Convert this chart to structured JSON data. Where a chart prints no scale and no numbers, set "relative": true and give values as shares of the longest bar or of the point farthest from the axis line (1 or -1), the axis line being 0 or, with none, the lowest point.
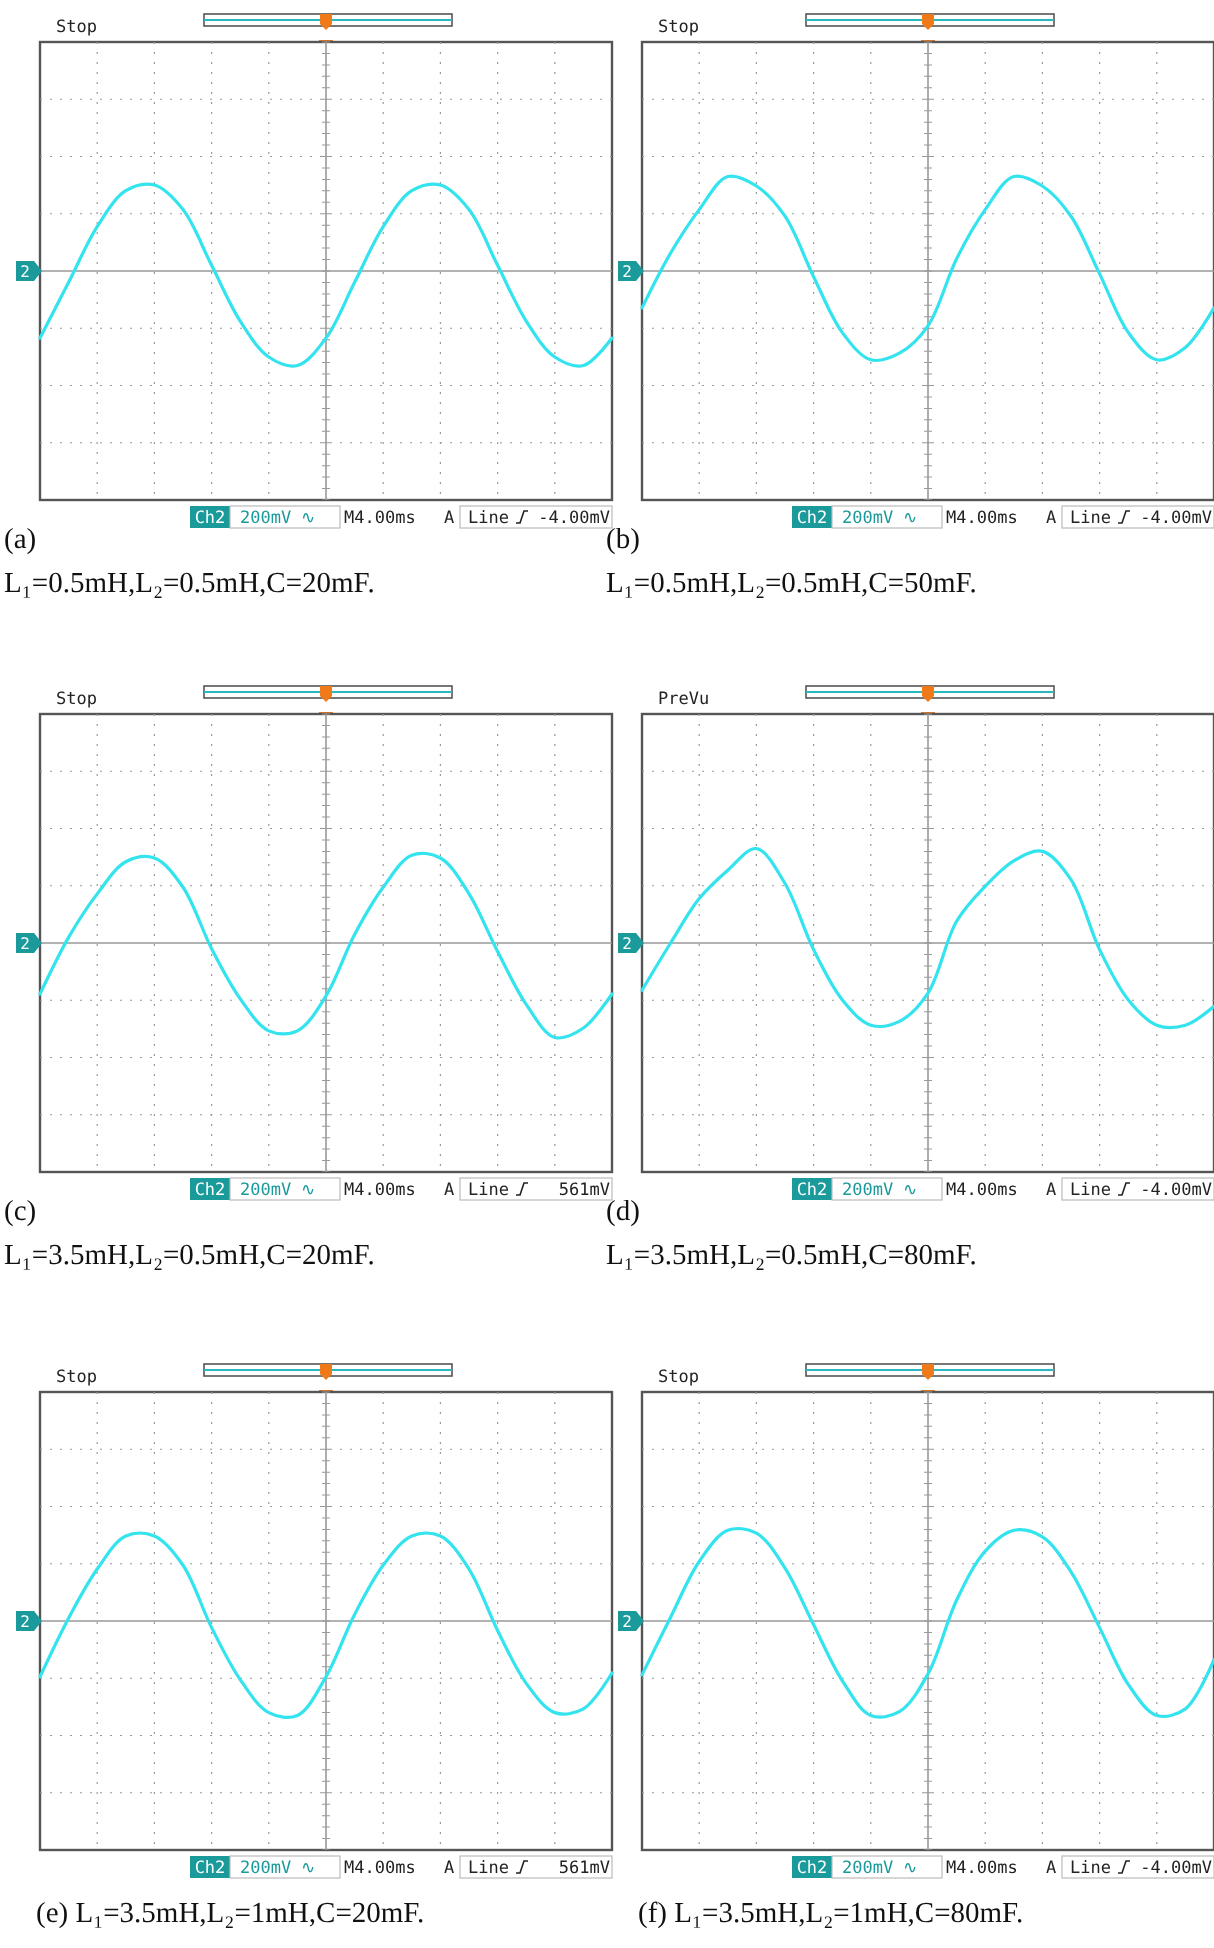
{
  "chart_data": [
    {
      "type": "line",
      "title": "(a)",
      "ref_lines": [
        {
          "axis": "y",
          "value": 0
        }
      ],
      "subtitle": "L₁=0.5mH,L₂=0.5mH,C=20mF.",
      "categories": [
        null,
        null,
        null,
        null,
        null,
        null,
        null,
        null,
        null,
        null,
        null,
        null,
        null,
        null,
        null,
        null,
        null,
        null,
        null,
        null,
        null
      ],
      "color": "#33e3ee",
      "relative": true,
      "grid": true,
      "annotations": [
        "Stop",
        "2",
        "Ch2",
        "200mV ∿",
        "M4.00ms",
        "A",
        "Line",
        "-4.00mV"
      ],
      "values": [
        -0.71,
        -0.12,
        0.47,
        0.85,
        0.91,
        0.65,
        0.06,
        -0.53,
        -0.91,
        -1,
        -0.71,
        -0.12,
        0.47,
        0.85,
        0.91,
        0.65,
        0.06,
        -0.53,
        -0.91,
        -1,
        -0.71
      ]
    },
    {
      "type": "line",
      "title": "(b)",
      "ref_lines": [
        {
          "axis": "y",
          "value": 0
        }
      ],
      "subtitle": "L₁=0.5mH,L₂=0.5mH,C=50mF.",
      "categories": [
        null,
        null,
        null,
        null,
        null,
        null,
        null,
        null,
        null,
        null,
        null,
        null,
        null,
        null,
        null,
        null,
        null,
        null,
        null,
        null,
        null
      ],
      "color": "#33e3ee",
      "relative": true,
      "grid": true,
      "annotations": [
        "Stop",
        "2",
        "Ch2",
        "200mV ∿",
        "M4.00ms",
        "A",
        "Line",
        "-4.00mV"
      ],
      "values": [
        -0.39,
        0.19,
        0.65,
        1,
        0.9,
        0.58,
        -0.06,
        -0.65,
        -0.94,
        -0.87,
        -0.58,
        0.13,
        0.65,
        1,
        0.9,
        0.58,
        -0.03,
        -0.65,
        -0.94,
        -0.81,
        -0.39
      ]
    },
    {
      "type": "line",
      "title": "(c)",
      "ref_lines": [
        {
          "axis": "y",
          "value": 0
        }
      ],
      "subtitle": "L₁=3.5mH,L₂=0.5mH,C=20mF.",
      "categories": [
        null,
        null,
        null,
        null,
        null,
        null,
        null,
        null,
        null,
        null,
        null,
        null,
        null,
        null,
        null,
        null,
        null,
        null,
        null,
        null,
        null
      ],
      "color": "#33e3ee",
      "relative": true,
      "grid": true,
      "annotations": [
        "Stop",
        "2",
        "Ch2",
        "200mV ∿",
        "M4.00ms",
        "A",
        "Line",
        "561mV"
      ],
      "values": [
        -0.54,
        0.06,
        0.52,
        0.86,
        0.9,
        0.59,
        -0.06,
        -0.59,
        -0.93,
        -0.93,
        -0.56,
        0.09,
        0.59,
        0.93,
        0.9,
        0.52,
        -0.09,
        -0.65,
        -1,
        -0.9,
        -0.54
      ]
    },
    {
      "type": "line",
      "title": "(d)",
      "ref_lines": [
        {
          "axis": "y",
          "value": 0
        }
      ],
      "subtitle": "L₁=3.5mH,L₂=0.5mH,C=80mF.",
      "categories": [
        null,
        null,
        null,
        null,
        null,
        null,
        null,
        null,
        null,
        null,
        null,
        null,
        null,
        null,
        null,
        null,
        null,
        null,
        null,
        null,
        null
      ],
      "color": "#33e3ee",
      "relative": true,
      "grid": true,
      "annotations": [
        "PreVu",
        "2",
        "Ch2",
        "200mV ∿",
        "M4.00ms",
        "A",
        "Line",
        "-4.00mV"
      ],
      "values": [
        -0.5,
        0,
        0.47,
        0.77,
        1,
        0.63,
        -0.07,
        -0.6,
        -0.87,
        -0.83,
        -0.53,
        0.23,
        0.6,
        0.87,
        0.97,
        0.67,
        -0.07,
        -0.6,
        -0.87,
        -0.87,
        -0.67
      ]
    },
    {
      "type": "line",
      "title": "(e)",
      "ref_lines": [
        {
          "axis": "y",
          "value": 0
        }
      ],
      "subtitle": "L₁=3.5mH,L₂=1mH,C=20mF.",
      "categories": [
        null,
        null,
        null,
        null,
        null,
        null,
        null,
        null,
        null,
        null,
        null,
        null,
        null,
        null,
        null,
        null,
        null,
        null,
        null,
        null,
        null
      ],
      "color": "#33e3ee",
      "relative": true,
      "grid": true,
      "annotations": [
        "Stop",
        "2",
        "Ch2",
        "200mV ∿",
        "M4.00ms",
        "A",
        "Line",
        "561mV"
      ],
      "values": [
        -0.59,
        0.03,
        0.55,
        0.9,
        0.9,
        0.59,
        -0.07,
        -0.62,
        -0.97,
        -1,
        -0.59,
        0.07,
        0.59,
        0.9,
        0.9,
        0.55,
        -0.1,
        -0.66,
        -0.97,
        -0.93,
        -0.55
      ]
    },
    {
      "type": "line",
      "title": "(f)",
      "ref_lines": [
        {
          "axis": "y",
          "value": 0
        }
      ],
      "subtitle": "L₁=3.5mH,L₂=1mH,C=80mF.",
      "categories": [
        null,
        null,
        null,
        null,
        null,
        null,
        null,
        null,
        null,
        null,
        null,
        null,
        null,
        null,
        null,
        null,
        null,
        null,
        null,
        null,
        null
      ],
      "color": "#33e3ee",
      "relative": true,
      "grid": true,
      "annotations": [
        "Stop",
        "2",
        "Ch2",
        "200mV ∿",
        "M4.00ms",
        "A",
        "Line",
        "-4.00mV"
      ],
      "values": [
        -0.57,
        0.04,
        0.63,
        0.96,
        0.93,
        0.56,
        -0.04,
        -0.63,
        -1,
        -0.96,
        -0.56,
        0.22,
        0.74,
        0.96,
        0.89,
        0.52,
        -0.07,
        -0.67,
        -1,
        -0.93,
        -0.41
      ]
    }
  ]
}
